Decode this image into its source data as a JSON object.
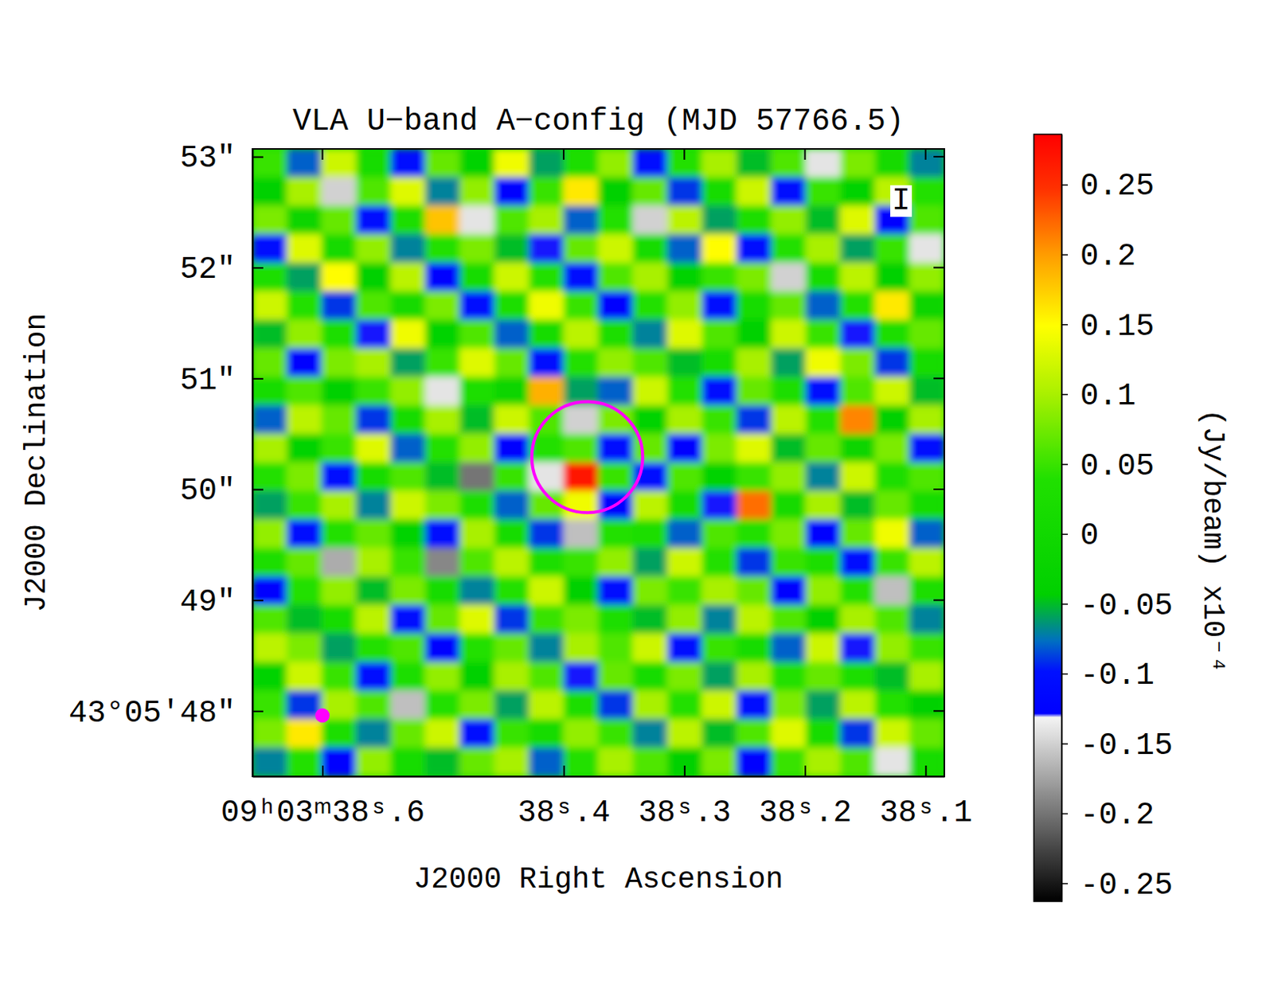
{
  "chart_data": {
    "type": "heatmap",
    "title": "VLA U−band A−config (MJD 57766.5)",
    "xlabel": "J2000 Right Ascension",
    "ylabel": "J2000 Declination",
    "xlim": [
      38.658,
      38.0845
    ],
    "ylim": [
      47.41,
      53.07
    ],
    "xticks": [
      {
        "value": 38.6,
        "label": "09ʰ03ᵐ38ˢ.6"
      },
      {
        "value": 38.4,
        "label": "38ˢ.4"
      },
      {
        "value": 38.3,
        "label": "38ˢ.3"
      },
      {
        "value": 38.2,
        "label": "38ˢ.2"
      },
      {
        "value": 38.1,
        "label": "38ˢ.1"
      }
    ],
    "yticks": [
      {
        "value": 53,
        "label": "53″"
      },
      {
        "value": 52,
        "label": "52″"
      },
      {
        "value": 51,
        "label": "51″"
      },
      {
        "value": 50,
        "label": "50″"
      },
      {
        "value": 49,
        "label": "49″"
      },
      {
        "value": 48,
        "label": "43°05′48″"
      }
    ],
    "z": [
      [
        0.05,
        -0.08,
        0.12,
        0.02,
        -0.1,
        0.07,
        -0.03,
        0.14,
        -0.06,
        0.03,
        0.09,
        -0.11,
        0.04,
        0.1,
        -0.05,
        0.06,
        -0.14,
        0.08,
        0.01,
        -0.07
      ],
      [
        -0.04,
        0.1,
        -0.15,
        0.06,
        0.13,
        -0.07,
        0.09,
        -0.12,
        0.05,
        0.16,
        -0.04,
        0.07,
        -0.09,
        0.02,
        0.12,
        -0.1,
        0.05,
        -0.03,
        0.11,
        0.04
      ],
      [
        0.08,
        -0.02,
        0.07,
        -0.11,
        0.03,
        0.18,
        -0.14,
        0.06,
        0.1,
        -0.08,
        0.04,
        -0.15,
        0.11,
        -0.06,
        0.03,
        0.09,
        -0.05,
        0.13,
        -0.12,
        0.06
      ],
      [
        -0.1,
        0.13,
        0.01,
        0.09,
        -0.07,
        0.04,
        0.08,
        -0.05,
        -0.13,
        0.07,
        0.12,
        0.02,
        -0.08,
        0.15,
        -0.11,
        0.04,
        0.1,
        -0.06,
        0.05,
        -0.14
      ],
      [
        0.03,
        -0.06,
        0.15,
        -0.04,
        0.11,
        -0.12,
        0.02,
        0.12,
        0.04,
        -0.1,
        0.06,
        0.1,
        -0.03,
        0.05,
        0.08,
        -0.15,
        0.02,
        0.11,
        -0.04,
        0.09
      ],
      [
        0.12,
        0.04,
        -0.09,
        0.06,
        0.01,
        0.08,
        -0.1,
        0.03,
        0.14,
        0.05,
        -0.12,
        0.04,
        0.09,
        -0.1,
        0.02,
        0.07,
        -0.08,
        0.04,
        0.16,
        -0.02
      ],
      [
        -0.05,
        0.09,
        0.03,
        -0.13,
        0.14,
        -0.03,
        0.06,
        -0.08,
        0.02,
        0.11,
        0.03,
        -0.07,
        0.13,
        0.06,
        -0.04,
        0.12,
        0.05,
        -0.13,
        0.03,
        0.07
      ],
      [
        0.07,
        -0.12,
        0.08,
        0.1,
        -0.06,
        0.05,
        0.13,
        0.07,
        -0.11,
        0.04,
        0.09,
        0.06,
        -0.05,
        0.02,
        0.1,
        -0.06,
        0.14,
        0.08,
        -0.09,
        0.02
      ],
      [
        0.02,
        0.06,
        -0.04,
        0.05,
        0.09,
        -0.14,
        0.03,
        -0.02,
        0.19,
        -0.06,
        -0.08,
        0.12,
        0.04,
        -0.11,
        0.07,
        0.03,
        -0.1,
        0.06,
        0.12,
        -0.05
      ],
      [
        -0.08,
        0.11,
        0.07,
        -0.09,
        0.02,
        0.1,
        -0.05,
        0.12,
        0.06,
        -0.15,
        0.08,
        -0.03,
        0.1,
        0.05,
        -0.09,
        0.11,
        0.04,
        0.21,
        -0.04,
        0.1
      ],
      [
        0.1,
        -0.03,
        0.05,
        0.13,
        -0.08,
        0.04,
        0.09,
        -0.12,
        0.04,
        0.06,
        -0.1,
        0.07,
        -0.12,
        0.08,
        0.13,
        -0.05,
        0.07,
        -0.02,
        0.08,
        -0.11
      ],
      [
        0.04,
        0.08,
        -0.11,
        0.02,
        0.06,
        -0.05,
        -0.2,
        0.05,
        -0.14,
        0.27,
        0.05,
        -0.1,
        0.06,
        -0.03,
        0.05,
        0.09,
        -0.07,
        0.12,
        0.03,
        0.06
      ],
      [
        -0.06,
        0.05,
        0.1,
        -0.07,
        0.12,
        0.08,
        0.03,
        -0.08,
        0.07,
        0.14,
        -0.12,
        0.11,
        0.02,
        -0.13,
        0.22,
        0.01,
        0.1,
        -0.05,
        0.07,
        0.02
      ],
      [
        0.09,
        -0.1,
        0.04,
        0.07,
        -0.03,
        -0.11,
        0.1,
        0.02,
        -0.09,
        -0.16,
        0.04,
        0.03,
        -0.08,
        0.06,
        0.04,
        0.08,
        -0.12,
        0.07,
        0.14,
        -0.08
      ],
      [
        0.03,
        0.07,
        -0.17,
        0.1,
        0.05,
        -0.19,
        0.06,
        0.11,
        0.03,
        0.05,
        0.09,
        -0.06,
        0.12,
        0.04,
        -0.09,
        0.05,
        0.03,
        -0.1,
        0.05,
        0.11
      ],
      [
        -0.12,
        0.04,
        0.09,
        -0.05,
        0.08,
        0.02,
        -0.07,
        0.04,
        0.12,
        -0.04,
        -0.11,
        0.08,
        0.05,
        0.1,
        0.07,
        -0.12,
        0.09,
        0.04,
        -0.16,
        0.03
      ],
      [
        0.06,
        -0.05,
        0.02,
        0.11,
        -0.1,
        0.07,
        0.13,
        -0.09,
        0.05,
        0.08,
        0.03,
        -0.05,
        0.09,
        -0.07,
        0.11,
        0.06,
        -0.04,
        0.1,
        0.06,
        -0.07
      ],
      [
        0.11,
        0.08,
        -0.06,
        0.04,
        0.06,
        -0.12,
        0.04,
        0.07,
        -0.07,
        0.1,
        0.06,
        0.12,
        -0.1,
        0.05,
        0.02,
        -0.08,
        0.12,
        -0.13,
        0.09,
        0.05
      ],
      [
        -0.03,
        0.12,
        0.05,
        -0.1,
        0.03,
        0.09,
        -0.04,
        0.1,
        0.06,
        -0.13,
        0.07,
        0.02,
        0.08,
        -0.06,
        0.1,
        0.04,
        0.07,
        0.03,
        -0.05,
        0.1
      ],
      [
        0.05,
        -0.09,
        0.1,
        0.06,
        -0.16,
        0.04,
        0.08,
        -0.06,
        0.11,
        0.03,
        -0.09,
        0.1,
        0.04,
        0.12,
        -0.11,
        0.08,
        -0.06,
        0.11,
        0.04,
        -0.04
      ],
      [
        0.08,
        0.16,
        0.03,
        -0.07,
        0.07,
        0.12,
        -0.11,
        0.05,
        0.02,
        0.09,
        0.05,
        -0.07,
        0.11,
        -0.05,
        0.06,
        0.13,
        0.02,
        -0.09,
        0.12,
        0.07
      ],
      [
        -0.07,
        0.04,
        -0.12,
        0.09,
        0.02,
        -0.05,
        0.07,
        0.1,
        -0.08,
        0.04,
        0.1,
        0.06,
        -0.04,
        0.08,
        -0.12,
        0.05,
        0.1,
        0.06,
        -0.14,
        0.02
      ]
    ],
    "colorbar": {
      "range": [
        -0.263,
        0.286
      ],
      "ticks": [
        0.25,
        0.2,
        0.15,
        0.1,
        0.05,
        0,
        -0.05,
        -0.1,
        -0.15,
        -0.2,
        -0.25
      ],
      "label": "(Jy/beam) x10⁻⁴"
    },
    "circle": {
      "ra": 38.3805,
      "dec": 50.29,
      "radius": 0.5,
      "color": "#ff00ff"
    },
    "beam": {
      "ra": 38.6,
      "dec": 47.96,
      "radius": 0.065,
      "color": "#ff00ff"
    },
    "annotations": [
      "I"
    ]
  }
}
